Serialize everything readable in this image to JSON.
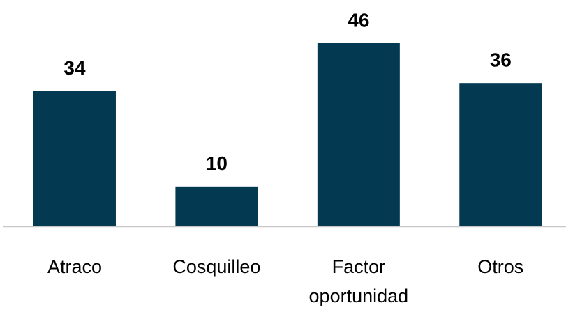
{
  "chart_data": {
    "type": "bar",
    "categories": [
      "Atraco",
      "Cosquilleo",
      "Factor oportunidad",
      "Otros"
    ],
    "values": [
      34,
      10,
      46,
      36
    ],
    "color": "#033a52"
  }
}
